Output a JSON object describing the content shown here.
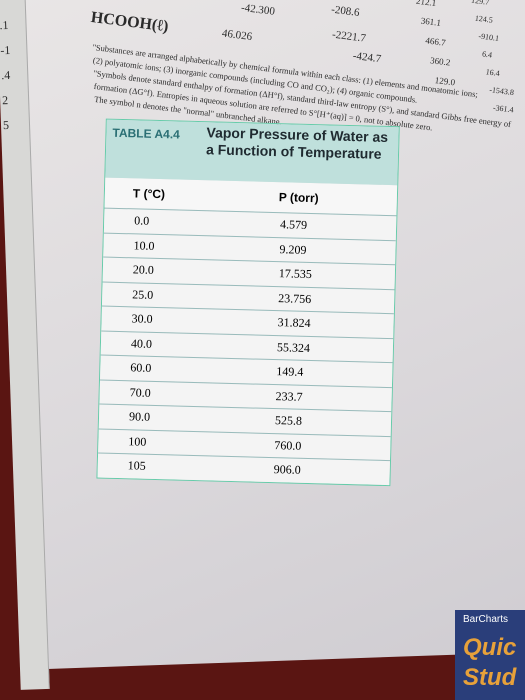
{
  "header": {
    "formula": "HCOOH(ℓ)",
    "values": [
      "-42.300",
      "46.026",
      "-208.6",
      "-2221.7",
      "-424.7"
    ],
    "notes": [
      "\"Substances are arranged alphabetically by chemical formula within each class: (1) elements and monatomic ions;",
      "(2) polyatomic ions; (3) inorganic compounds (including CO and CO₂); (4) organic compounds.",
      "\"Symbols denote standard enthalpy of formation (ΔH°f), standard third-law entropy (S°), and standard Gibbs free energy of",
      "formation (ΔG°f). Entropies in aqueous solution are referred to S°[H⁺(aq)] = 0, not to absolute zero.",
      "The symbol n denotes the \"normal\" unbranched alkane."
    ]
  },
  "right_column": [
    "212.1",
    "361.1",
    "466.7",
    "360.2",
    "129.0"
  ],
  "far_right_column": [
    "129.7",
    "124.5",
    "-910.1",
    "6.4",
    "16.4",
    "-1543.8",
    "-361.4"
  ],
  "left_margin": [
    ".1",
    "-1",
    ".4",
    "2",
    "5"
  ],
  "table": {
    "label": "TABLE A4.4",
    "title": "Vapor Pressure of Water as a Function of Temperature",
    "columns": [
      "T (°C)",
      "P (torr)"
    ],
    "rows": [
      [
        "0.0",
        "4.579"
      ],
      [
        "10.0",
        "9.209"
      ],
      [
        "20.0",
        "17.535"
      ],
      [
        "25.0",
        "23.756"
      ],
      [
        "30.0",
        "31.824"
      ],
      [
        "40.0",
        "55.324"
      ],
      [
        "60.0",
        "149.4"
      ],
      [
        "70.0",
        "233.7"
      ],
      [
        "90.0",
        "525.8"
      ],
      [
        "100",
        "760.0"
      ],
      [
        "105",
        "906.0"
      ]
    ]
  },
  "book": {
    "brand": "BarCharts",
    "title_lines": [
      "Quic",
      "Stud"
    ]
  }
}
